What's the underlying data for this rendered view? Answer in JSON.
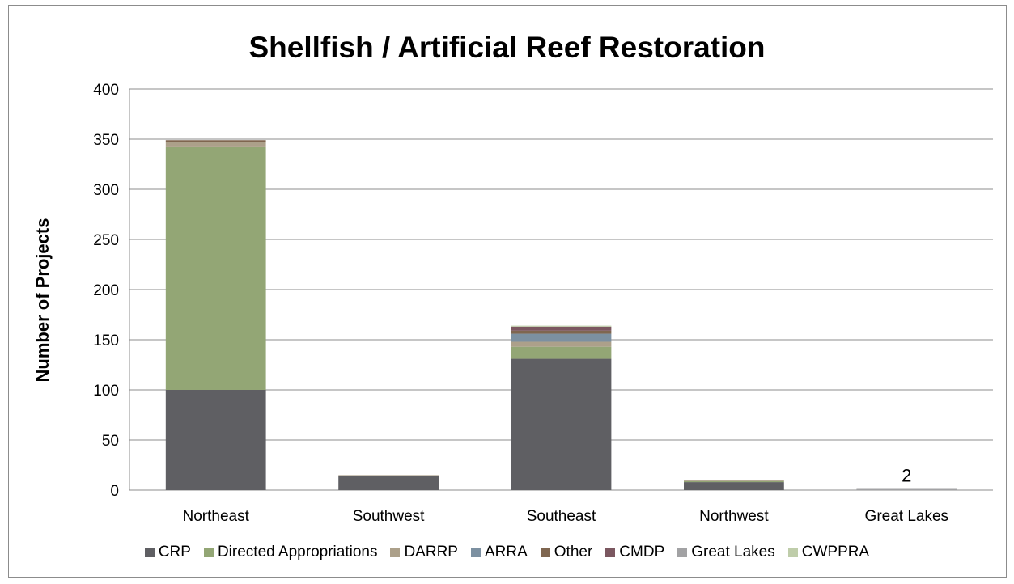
{
  "chart_data": {
    "type": "bar",
    "stacked": true,
    "title": "Shellfish / Artificial Reef Restoration",
    "ylabel": "Number of Projects",
    "ylim": [
      0,
      400
    ],
    "yticks": [
      "0",
      "50",
      "100",
      "150",
      "200",
      "250",
      "300",
      "350",
      "400"
    ],
    "grid": true,
    "legend_position": "bottom",
    "categories": [
      "Northeast",
      "Southwest",
      "Southeast",
      "Northwest",
      "Great Lakes"
    ],
    "series": [
      {
        "name": "CRP",
        "color": "#5f5f63",
        "values": [
          100,
          14,
          131,
          8,
          0
        ]
      },
      {
        "name": "Directed Appropriations",
        "color": "#93a675",
        "values": [
          242,
          0,
          12,
          1,
          0
        ]
      },
      {
        "name": "DARRP",
        "color": "#aca08a",
        "values": [
          5,
          1,
          5,
          1,
          0
        ]
      },
      {
        "name": "ARRA",
        "color": "#7c90a1",
        "values": [
          0,
          0,
          8,
          0,
          0
        ]
      },
      {
        "name": "Other",
        "color": "#7f6650",
        "values": [
          2,
          0,
          3,
          0,
          0
        ]
      },
      {
        "name": "CMDP",
        "color": "#7b5760",
        "values": [
          0,
          0,
          4,
          0,
          0
        ]
      },
      {
        "name": "Great Lakes",
        "color": "#a2a2a4",
        "values": [
          0,
          0,
          0,
          0,
          2
        ]
      },
      {
        "name": "CWPPRA",
        "color": "#bfcdaa",
        "values": [
          0,
          0,
          1,
          0,
          0
        ]
      }
    ],
    "annotations": [
      {
        "category": "Great Lakes",
        "text": "2"
      }
    ]
  }
}
